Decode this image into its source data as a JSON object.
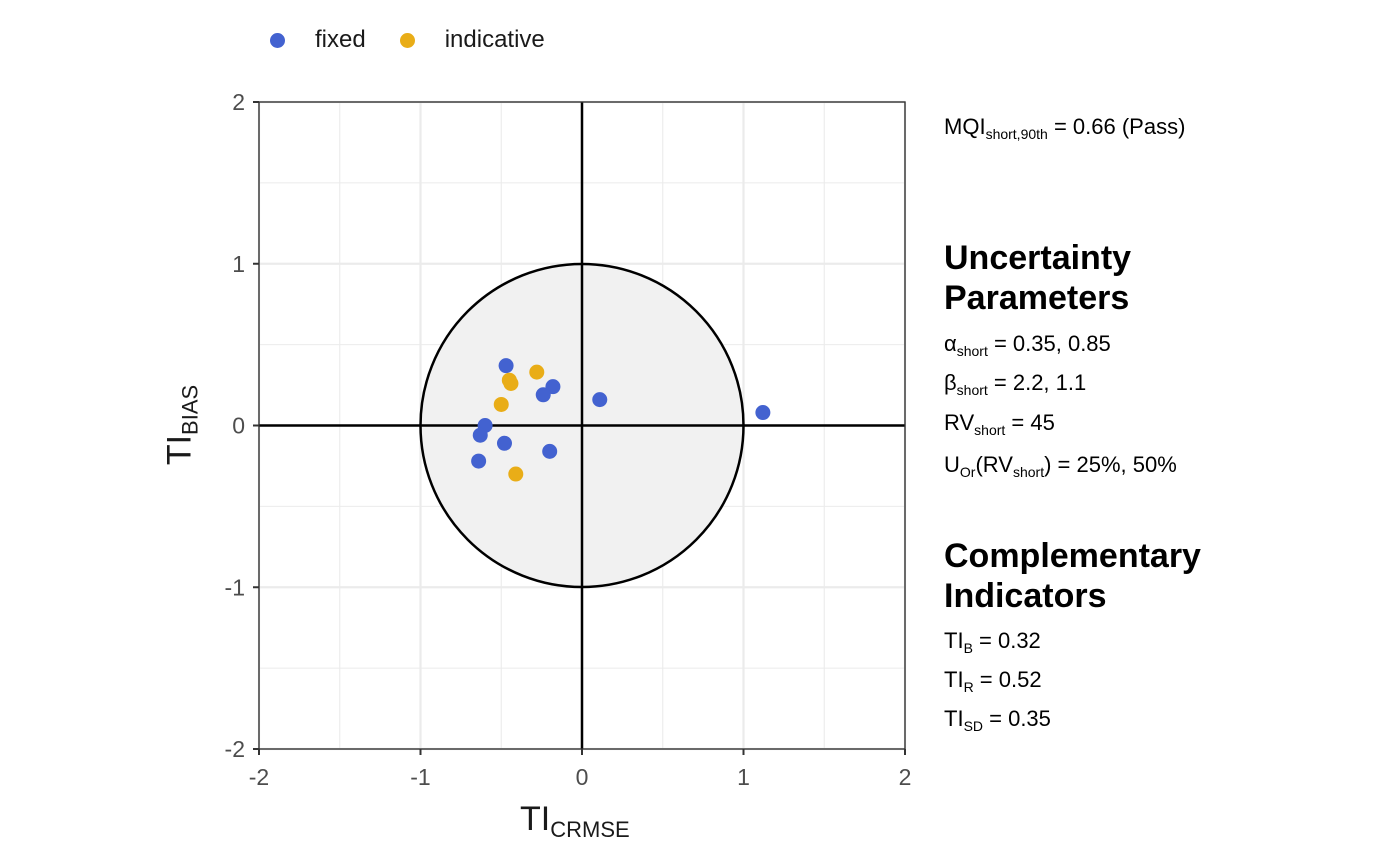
{
  "legend": [
    {
      "label": "fixed",
      "color": "#4362d0"
    },
    {
      "label": "indicative",
      "color": "#e9ad17"
    }
  ],
  "chart_data": {
    "type": "scatter",
    "title": "",
    "xlabel": {
      "main": "TI",
      "sub": "CRMSE"
    },
    "ylabel": {
      "main": "TI",
      "sub": "BIAS"
    },
    "xlim": [
      -2,
      2
    ],
    "ylim": [
      -2,
      2
    ],
    "xticks": [
      "-2",
      "-1",
      "0",
      "1",
      "2"
    ],
    "yticks": [
      "-2",
      "-1",
      "0",
      "1",
      "2"
    ],
    "grid": true,
    "target_circle_radius": 1,
    "series": [
      {
        "name": "fixed",
        "color": "#4362d0",
        "points": [
          [
            -0.47,
            0.37
          ],
          [
            -0.18,
            0.24
          ],
          [
            -0.24,
            0.19
          ],
          [
            0.11,
            0.16
          ],
          [
            1.12,
            0.08
          ],
          [
            -0.6,
            0.0
          ],
          [
            -0.63,
            -0.06
          ],
          [
            -0.48,
            -0.11
          ],
          [
            -0.64,
            -0.22
          ],
          [
            -0.2,
            -0.16
          ]
        ]
      },
      {
        "name": "indicative",
        "color": "#e9ad17",
        "points": [
          [
            -0.28,
            0.33
          ],
          [
            -0.45,
            0.28
          ],
          [
            -0.44,
            0.26
          ],
          [
            -0.5,
            0.13
          ],
          [
            -0.41,
            -0.3
          ]
        ]
      }
    ]
  },
  "panel": {
    "mqi": {
      "main": "MQI",
      "sub": "short,90th",
      "value": " = 0.66 (Pass)"
    },
    "uncertainty_heading_1": "Uncertainty",
    "uncertainty_heading_2": "Parameters",
    "alpha": {
      "main": "α",
      "sub": "short",
      "value": " = 0.35, 0.85"
    },
    "beta": {
      "main": "β",
      "sub": "short",
      "value": " = 2.2, 1.1"
    },
    "rv": {
      "main": "RV",
      "sub": "short",
      "value": " = 45"
    },
    "uor": {
      "main": "U",
      "sub": "Or",
      "mid": "(RV",
      "sub2": "short",
      "value": ") = 25%, 50%"
    },
    "complementary_heading_1": "Complementary",
    "complementary_heading_2": "Indicators",
    "tib": {
      "main": "TI",
      "sub": "B",
      "value": " = 0.32"
    },
    "tir": {
      "main": "TI",
      "sub": "R",
      "value": " = 0.52"
    },
    "tisd": {
      "main": "TI",
      "sub": "SD",
      "value": " = 0.35"
    }
  }
}
